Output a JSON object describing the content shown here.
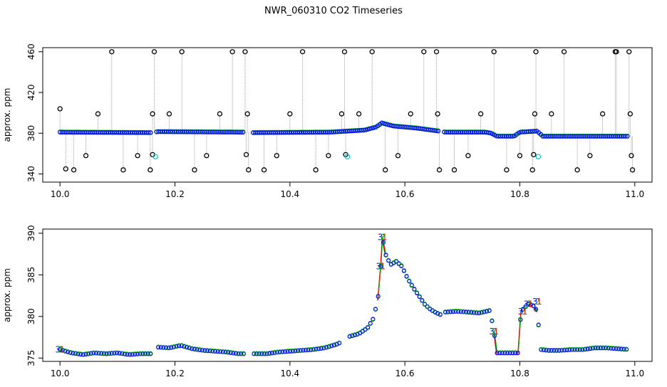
{
  "page": {
    "title": "NWR_060310  CO2 Timeseries"
  },
  "chart_data": [
    {
      "type": "scatter",
      "title": "",
      "xlabel": "",
      "ylabel": "approx. ppm",
      "xlim": [
        9.97,
        11.03
      ],
      "ylim": [
        332,
        464
      ],
      "xticks": [
        10.0,
        10.2,
        10.4,
        10.6,
        10.8,
        11.0
      ],
      "xtick_labels": [
        "10.0",
        "10.2",
        "10.4",
        "10.6",
        "10.8",
        "11.0"
      ],
      "yticks": [
        340,
        380,
        420,
        460
      ],
      "ytick_labels": [
        "340",
        "380",
        "420",
        "460"
      ],
      "grid": false,
      "colors": {
        "series_a": "#0000ff",
        "series_b": "#00cc00",
        "series_c": "#ff0000",
        "flag": "#00cccc",
        "spike": "#000000",
        "drop": "#888888"
      },
      "baseline": [
        [
          10.0,
          381
        ],
        [
          10.16,
          380.5
        ],
        [
          10.17,
          381.5
        ],
        [
          10.32,
          381
        ],
        [
          10.33,
          380.5
        ],
        [
          10.47,
          381
        ],
        [
          10.5,
          382
        ],
        [
          10.53,
          383
        ],
        [
          10.55,
          386
        ],
        [
          10.56,
          390
        ],
        [
          10.58,
          387
        ],
        [
          10.62,
          385
        ],
        [
          10.66,
          382
        ],
        [
          10.67,
          381
        ],
        [
          10.74,
          381
        ],
        [
          10.75,
          380
        ],
        [
          10.76,
          377
        ],
        [
          10.79,
          377
        ],
        [
          10.8,
          381
        ],
        [
          10.83,
          382
        ],
        [
          10.84,
          377
        ],
        [
          10.99,
          377
        ]
      ],
      "spikes": [
        {
          "x": 10.0,
          "y": 404
        },
        {
          "x": 10.01,
          "y": 345
        },
        {
          "x": 10.024,
          "y": 344
        },
        {
          "x": 10.045,
          "y": 358
        },
        {
          "x": 10.066,
          "y": 399
        },
        {
          "x": 10.09,
          "y": 460
        },
        {
          "x": 10.11,
          "y": 344
        },
        {
          "x": 10.135,
          "y": 358
        },
        {
          "x": 10.157,
          "y": 344
        },
        {
          "x": 10.161,
          "y": 399
        },
        {
          "x": 10.161,
          "y": 359
        },
        {
          "x": 10.164,
          "y": 460
        },
        {
          "x": 10.19,
          "y": 399
        },
        {
          "x": 10.212,
          "y": 460
        },
        {
          "x": 10.234,
          "y": 344
        },
        {
          "x": 10.255,
          "y": 358
        },
        {
          "x": 10.278,
          "y": 399
        },
        {
          "x": 10.3,
          "y": 460
        },
        {
          "x": 10.322,
          "y": 460
        },
        {
          "x": 10.324,
          "y": 359
        },
        {
          "x": 10.326,
          "y": 399
        },
        {
          "x": 10.328,
          "y": 344
        },
        {
          "x": 10.355,
          "y": 344
        },
        {
          "x": 10.377,
          "y": 358
        },
        {
          "x": 10.4,
          "y": 399
        },
        {
          "x": 10.422,
          "y": 460
        },
        {
          "x": 10.445,
          "y": 344
        },
        {
          "x": 10.467,
          "y": 358
        },
        {
          "x": 10.49,
          "y": 399
        },
        {
          "x": 10.495,
          "y": 460
        },
        {
          "x": 10.497,
          "y": 359
        },
        {
          "x": 10.52,
          "y": 399
        },
        {
          "x": 10.543,
          "y": 460
        },
        {
          "x": 10.566,
          "y": 344
        },
        {
          "x": 10.588,
          "y": 358
        },
        {
          "x": 10.61,
          "y": 399
        },
        {
          "x": 10.633,
          "y": 460
        },
        {
          "x": 10.655,
          "y": 460
        },
        {
          "x": 10.657,
          "y": 399
        },
        {
          "x": 10.66,
          "y": 344
        },
        {
          "x": 10.686,
          "y": 344
        },
        {
          "x": 10.71,
          "y": 358
        },
        {
          "x": 10.732,
          "y": 399
        },
        {
          "x": 10.755,
          "y": 460
        },
        {
          "x": 10.777,
          "y": 344
        },
        {
          "x": 10.8,
          "y": 358
        },
        {
          "x": 10.822,
          "y": 344
        },
        {
          "x": 10.824,
          "y": 359
        },
        {
          "x": 10.826,
          "y": 399
        },
        {
          "x": 10.828,
          "y": 460
        },
        {
          "x": 10.855,
          "y": 399
        },
        {
          "x": 10.877,
          "y": 460
        },
        {
          "x": 10.9,
          "y": 344
        },
        {
          "x": 10.922,
          "y": 358
        },
        {
          "x": 10.944,
          "y": 399
        },
        {
          "x": 10.966,
          "y": 460
        },
        {
          "x": 10.968,
          "y": 460
        },
        {
          "x": 10.99,
          "y": 460
        },
        {
          "x": 10.992,
          "y": 399
        },
        {
          "x": 10.994,
          "y": 358
        },
        {
          "x": 10.996,
          "y": 344
        }
      ],
      "flags": [
        {
          "x": 10.166,
          "y": 357
        },
        {
          "x": 10.5,
          "y": 357
        },
        {
          "x": 10.832,
          "y": 357
        }
      ]
    },
    {
      "type": "line",
      "title": "",
      "xlabel": "",
      "ylabel": "approx. ppm",
      "xlim": [
        9.97,
        11.03
      ],
      "ylim": [
        374.6,
        390.5
      ],
      "xticks": [
        10.0,
        10.2,
        10.4,
        10.6,
        10.8,
        11.0
      ],
      "xtick_labels": [
        "10.0",
        "10.2",
        "10.4",
        "10.6",
        "10.8",
        "11.0"
      ],
      "yticks": [
        375,
        380,
        385,
        390
      ],
      "ytick_labels": [
        "375",
        "380",
        "385",
        "390"
      ],
      "grid": false,
      "series": [
        {
          "color": "#0000ff",
          "marker": "3",
          "points": [
            [
              10.0,
              376.0
            ],
            [
              10.02,
              375.6
            ],
            [
              10.04,
              375.4
            ],
            [
              10.06,
              375.6
            ],
            [
              10.08,
              375.5
            ],
            [
              10.1,
              375.6
            ],
            [
              10.12,
              375.4
            ],
            [
              10.14,
              375.5
            ],
            [
              10.159,
              375.5
            ],
            [
              10.168,
              376.3
            ],
            [
              10.19,
              376.2
            ],
            [
              10.21,
              376.5
            ],
            [
              10.23,
              376.1
            ],
            [
              10.25,
              375.9
            ],
            [
              10.27,
              375.8
            ],
            [
              10.29,
              375.7
            ],
            [
              10.31,
              375.5
            ],
            [
              10.32,
              375.5
            ],
            [
              10.335,
              375.5
            ],
            [
              10.36,
              375.5
            ],
            [
              10.38,
              375.7
            ],
            [
              10.4,
              375.8
            ],
            [
              10.42,
              375.9
            ],
            [
              10.44,
              376.0
            ],
            [
              10.46,
              376.2
            ],
            [
              10.48,
              376.6
            ],
            [
              10.49,
              376.9
            ],
            [
              10.5,
              377.5
            ],
            [
              10.52,
              377.9
            ],
            [
              10.535,
              378.6
            ],
            [
              10.545,
              379.7
            ],
            [
              10.553,
              382.0
            ],
            [
              10.558,
              386.0
            ],
            [
              10.561,
              389.5
            ],
            [
              10.566,
              387.5
            ],
            [
              10.575,
              386.2
            ],
            [
              10.585,
              386.6
            ],
            [
              10.595,
              386.0
            ],
            [
              10.605,
              384.5
            ],
            [
              10.615,
              383.4
            ],
            [
              10.625,
              382.4
            ],
            [
              10.635,
              381.4
            ],
            [
              10.645,
              380.8
            ],
            [
              10.655,
              380.4
            ],
            [
              10.662,
              380.2
            ],
            [
              10.67,
              380.5
            ],
            [
              10.69,
              380.6
            ],
            [
              10.71,
              380.5
            ],
            [
              10.73,
              380.4
            ],
            [
              10.748,
              380.7
            ],
            [
              10.755,
              378.2
            ],
            [
              10.76,
              375.6
            ],
            [
              10.78,
              375.6
            ],
            [
              10.797,
              375.6
            ],
            [
              10.802,
              380.6
            ],
            [
              10.815,
              381.5
            ],
            [
              10.825,
              381.2
            ],
            [
              10.83,
              380.6
            ],
            [
              10.837,
              376.0
            ],
            [
              10.85,
              375.9
            ],
            [
              10.87,
              375.9
            ],
            [
              10.89,
              376.0
            ],
            [
              10.91,
              376.0
            ],
            [
              10.93,
              376.2
            ],
            [
              10.95,
              376.2
            ],
            [
              10.97,
              376.1
            ],
            [
              10.99,
              376.0
            ]
          ]
        },
        {
          "color": "#00cc00",
          "marker": "2"
        },
        {
          "color": "#ff0000",
          "marker": "1"
        }
      ]
    }
  ]
}
